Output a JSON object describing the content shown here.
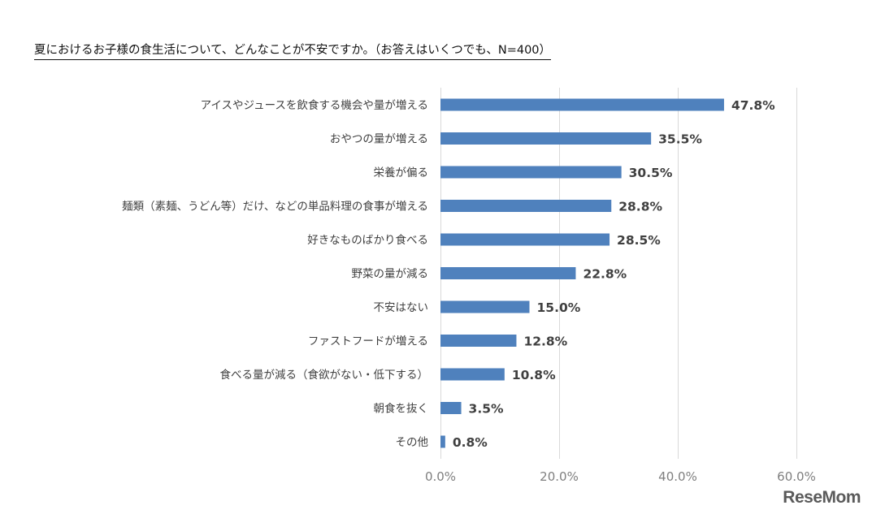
{
  "title": "夏におけるお子様の食生活について、どんなことが不安ですか。（お答えはいくつでも、N=400）",
  "watermark": "ReseMom",
  "colors": {
    "bar": "#4f81bd",
    "grid": "#d9d9d9",
    "axis_text": "#7f7f7f",
    "label_text": "#404040"
  },
  "chart_data": {
    "type": "bar",
    "orientation": "horizontal",
    "title": "夏におけるお子様の食生活について、どんなことが不安ですか。（お答えはいくつでも、N=400）",
    "xlabel": "",
    "ylabel": "",
    "xlim": [
      0,
      60
    ],
    "grid": true,
    "legend": "none",
    "categories": [
      "アイスやジュースを飲食する機会や量が増える",
      "おやつの量が増える",
      "栄養が偏る",
      "麺類（素麺、うどん等）だけ、などの単品料理の食事が増える",
      "好きなものばかり食べる",
      "野菜の量が減る",
      "不安はない",
      "ファストフードが増える",
      "食べる量が減る（食欲がない・低下する）",
      "朝食を抜く",
      "その他"
    ],
    "values": [
      47.8,
      35.5,
      30.5,
      28.8,
      28.5,
      22.8,
      15.0,
      12.8,
      10.8,
      3.5,
      0.8
    ],
    "value_labels": [
      "47.8%",
      "35.5%",
      "30.5%",
      "28.8%",
      "28.5%",
      "22.8%",
      "15.0%",
      "12.8%",
      "10.8%",
      "3.5%",
      "0.8%"
    ],
    "x_ticks": [
      0,
      20,
      40,
      60
    ],
    "x_tick_labels": [
      "0.0%",
      "20.0%",
      "40.0%",
      "60.0%"
    ]
  }
}
